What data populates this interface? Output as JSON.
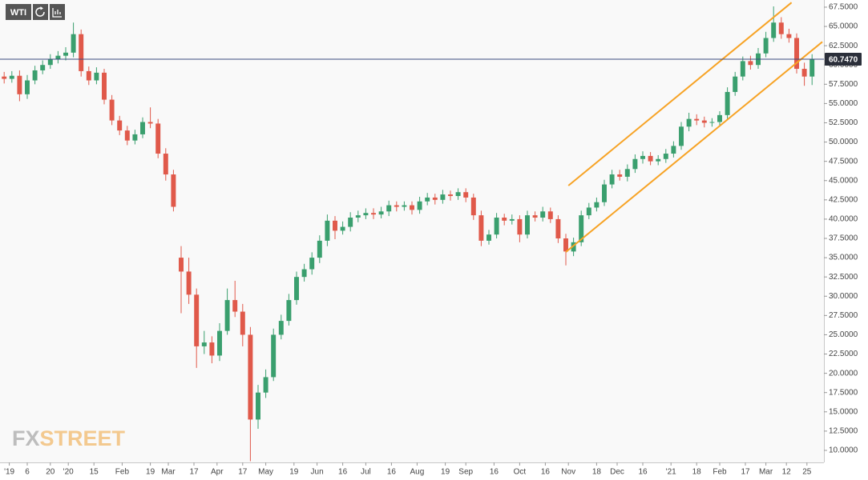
{
  "toolbar": {
    "symbol": "WTI"
  },
  "watermark": {
    "prefix": "FX",
    "suffix": "STREET"
  },
  "chart_data": {
    "type": "candlestick",
    "up_color": "#3a9f6e",
    "down_color": "#e0594a",
    "x": [
      1,
      4,
      7,
      10,
      13,
      16,
      19,
      22,
      25,
      28,
      31,
      34,
      37,
      40,
      43,
      46,
      49,
      52,
      55,
      58,
      61,
      64,
      67,
      70,
      73,
      76,
      79,
      82,
      85,
      88,
      91,
      94,
      97,
      100,
      103,
      106,
      109,
      112,
      115,
      118,
      121,
      124,
      127,
      130,
      133,
      136,
      139,
      142,
      145,
      148,
      151,
      154,
      157,
      160,
      163,
      166,
      169,
      172,
      175,
      178,
      181,
      184,
      187,
      190,
      193,
      196,
      199,
      202,
      205,
      208,
      211,
      214,
      217,
      220,
      223,
      226,
      229,
      232,
      235,
      238,
      241,
      244,
      247,
      250,
      253,
      256,
      259,
      262,
      265,
      268,
      271,
      274,
      277,
      280,
      283,
      286,
      289,
      292,
      295,
      298,
      301,
      304,
      307,
      310,
      313,
      316
    ],
    "open": [
      58.5,
      58.2,
      58.6,
      56.2,
      58.0,
      59.3,
      60.0,
      60.8,
      61.2,
      61.6,
      64.0,
      59.2,
      58.0,
      59.0,
      55.5,
      52.8,
      51.5,
      50.2,
      51.0,
      52.6,
      52.4,
      48.5,
      45.8,
      35.0,
      33.2,
      30.2,
      23.5,
      24.0,
      22.3,
      25.5,
      29.5,
      28.0,
      25.0,
      14.0,
      17.5,
      19.5,
      25.0,
      26.8,
      29.5,
      32.5,
      33.5,
      35.0,
      37.2,
      39.8,
      38.5,
      39.0,
      40.2,
      40.5,
      40.8,
      40.6,
      41.0,
      41.8,
      41.6,
      41.8,
      41.2,
      42.3,
      42.8,
      42.5,
      43.2,
      43.0,
      43.5,
      42.8,
      40.5,
      37.2,
      38.0,
      40.2,
      39.8,
      40.0,
      38.0,
      40.5,
      40.2,
      41.0,
      40.0,
      37.5,
      35.8,
      37.0,
      40.5,
      41.5,
      42.2,
      44.5,
      45.8,
      45.5,
      46.5,
      47.8,
      48.2,
      47.5,
      47.8,
      48.5,
      49.5,
      52.0,
      53.0,
      52.8,
      52.5,
      52.6,
      53.5,
      56.5,
      58.5,
      60.5,
      60.0,
      61.5,
      63.5,
      65.5,
      64.0,
      63.5,
      59.5,
      58.5
    ],
    "high": [
      59.1,
      59.2,
      59.3,
      58.7,
      59.9,
      60.6,
      61.4,
      61.8,
      62.3,
      65.5,
      64.6,
      59.8,
      59.7,
      59.5,
      56.1,
      53.4,
      52.1,
      51.6,
      53.2,
      54.5,
      53.0,
      49.2,
      46.4,
      36.5,
      35.0,
      31.0,
      25.5,
      24.8,
      26.5,
      31.0,
      32.0,
      29.0,
      26.0,
      18.5,
      20.5,
      25.8,
      27.6,
      30.3,
      33.2,
      34.2,
      35.7,
      37.9,
      40.6,
      40.4,
      39.7,
      40.9,
      41.1,
      41.4,
      41.4,
      41.6,
      42.4,
      42.3,
      42.3,
      42.3,
      42.9,
      43.4,
      43.3,
      43.8,
      43.7,
      44.0,
      44.0,
      43.3,
      41.1,
      38.6,
      40.8,
      40.7,
      40.6,
      40.5,
      41.1,
      41.0,
      41.6,
      41.5,
      40.5,
      38.1,
      37.6,
      41.1,
      42.1,
      42.8,
      45.1,
      46.4,
      46.4,
      47.1,
      48.4,
      48.8,
      48.7,
      48.3,
      49.1,
      50.1,
      52.6,
      53.8,
      53.6,
      53.3,
      53.1,
      54.0,
      57.1,
      59.1,
      61.1,
      61.2,
      62.2,
      64.3,
      67.6,
      66.2,
      64.7,
      64.1,
      60.3,
      61.4
    ],
    "low": [
      57.6,
      57.7,
      55.3,
      55.6,
      57.5,
      58.8,
      59.5,
      60.2,
      60.6,
      61.0,
      58.5,
      57.4,
      57.5,
      54.9,
      52.2,
      50.9,
      49.6,
      49.7,
      50.5,
      51.8,
      47.9,
      45.0,
      41.0,
      27.8,
      29.0,
      20.7,
      22.5,
      21.3,
      21.6,
      25.0,
      27.3,
      23.5,
      8.6,
      12.8,
      16.8,
      19.0,
      24.4,
      26.2,
      28.9,
      31.9,
      32.8,
      34.3,
      36.5,
      37.4,
      38.0,
      38.4,
      39.6,
      40.0,
      40.0,
      40.1,
      40.4,
      41.0,
      41.1,
      40.6,
      40.7,
      41.8,
      41.9,
      42.0,
      42.4,
      42.5,
      42.2,
      39.9,
      36.5,
      36.7,
      37.5,
      39.2,
      39.3,
      37.0,
      37.5,
      39.7,
      39.7,
      39.5,
      36.9,
      34.0,
      35.2,
      36.5,
      40.0,
      41.0,
      41.7,
      44.0,
      45.0,
      44.9,
      46.0,
      47.2,
      47.0,
      47.0,
      47.3,
      48.0,
      49.0,
      51.4,
      52.2,
      51.9,
      52.0,
      52.0,
      53.0,
      56.0,
      58.0,
      59.4,
      59.5,
      61.0,
      63.0,
      63.4,
      62.9,
      58.9,
      57.3,
      57.4
    ],
    "close": [
      58.2,
      58.6,
      56.2,
      58.0,
      59.3,
      60.0,
      60.8,
      61.2,
      61.6,
      64.0,
      59.2,
      58.0,
      59.0,
      55.5,
      52.8,
      51.5,
      50.2,
      51.0,
      52.6,
      52.4,
      48.5,
      45.8,
      41.6,
      33.2,
      30.2,
      23.5,
      24.0,
      22.3,
      25.5,
      29.5,
      28.0,
      25.0,
      14.0,
      17.5,
      19.5,
      25.0,
      26.8,
      29.5,
      32.5,
      33.5,
      35.0,
      37.2,
      39.8,
      38.5,
      39.0,
      40.2,
      40.5,
      40.8,
      40.6,
      41.0,
      41.8,
      41.6,
      41.8,
      41.2,
      42.3,
      42.8,
      42.5,
      43.2,
      43.0,
      43.5,
      42.8,
      40.5,
      37.2,
      38.0,
      40.2,
      39.8,
      40.0,
      38.0,
      40.5,
      40.2,
      41.0,
      40.0,
      37.5,
      35.8,
      37.0,
      40.5,
      41.5,
      42.2,
      44.5,
      45.8,
      45.5,
      46.5,
      47.8,
      48.2,
      47.5,
      47.8,
      48.5,
      49.5,
      52.0,
      53.0,
      52.8,
      52.5,
      52.6,
      53.5,
      56.5,
      58.5,
      60.5,
      60.0,
      61.5,
      63.5,
      65.5,
      64.0,
      63.5,
      59.5,
      58.5,
      60.7
    ],
    "xlim": [
      0,
      320
    ],
    "xticks": [
      {
        "value": 3,
        "label": "'19"
      },
      {
        "value": 10,
        "label": "6"
      },
      {
        "value": 19,
        "label": "20"
      },
      {
        "value": 26,
        "label": "'20"
      },
      {
        "value": 36,
        "label": "15"
      },
      {
        "value": 47,
        "label": "Feb"
      },
      {
        "value": 58,
        "label": "19"
      },
      {
        "value": 65,
        "label": "Mar"
      },
      {
        "value": 75,
        "label": "17"
      },
      {
        "value": 84,
        "label": "Apr"
      },
      {
        "value": 94,
        "label": "17"
      },
      {
        "value": 103,
        "label": "May"
      },
      {
        "value": 114,
        "label": "19"
      },
      {
        "value": 123,
        "label": "Jun"
      },
      {
        "value": 133,
        "label": "16"
      },
      {
        "value": 142,
        "label": "Jul"
      },
      {
        "value": 152,
        "label": "16"
      },
      {
        "value": 162,
        "label": "Aug"
      },
      {
        "value": 173,
        "label": "19"
      },
      {
        "value": 181,
        "label": "Sep"
      },
      {
        "value": 192,
        "label": "16"
      },
      {
        "value": 202,
        "label": "Oct"
      },
      {
        "value": 212,
        "label": "16"
      },
      {
        "value": 221,
        "label": "Nov"
      },
      {
        "value": 232,
        "label": "18"
      },
      {
        "value": 240,
        "label": "Dec"
      },
      {
        "value": 250,
        "label": "16"
      },
      {
        "value": 261,
        "label": "'21"
      },
      {
        "value": 271,
        "label": "18"
      },
      {
        "value": 280,
        "label": "Feb"
      },
      {
        "value": 290,
        "label": "17"
      },
      {
        "value": 298,
        "label": "Mar"
      },
      {
        "value": 306,
        "label": "12"
      },
      {
        "value": 314,
        "label": "25"
      }
    ],
    "ylim": [
      8.44,
      68.43
    ],
    "yticks": [
      {
        "value": 10,
        "label": "10.0000"
      },
      {
        "value": 12.5,
        "label": "12.5000"
      },
      {
        "value": 15,
        "label": "15.0000"
      },
      {
        "value": 17.5,
        "label": "17.5000"
      },
      {
        "value": 20,
        "label": "20.0000"
      },
      {
        "value": 22.5,
        "label": "22.5000"
      },
      {
        "value": 25,
        "label": "25.0000"
      },
      {
        "value": 27.5,
        "label": "27.5000"
      },
      {
        "value": 30,
        "label": "30.0000"
      },
      {
        "value": 32.5,
        "label": "32.5000"
      },
      {
        "value": 35,
        "label": "35.0000"
      },
      {
        "value": 37.5,
        "label": "37.5000"
      },
      {
        "value": 40,
        "label": "40.0000"
      },
      {
        "value": 42.5,
        "label": "42.5000"
      },
      {
        "value": 45,
        "label": "45.0000"
      },
      {
        "value": 47.5,
        "label": "47.5000"
      },
      {
        "value": 50,
        "label": "50.0000"
      },
      {
        "value": 52.5,
        "label": "52.5000"
      },
      {
        "value": 55,
        "label": "55.0000"
      },
      {
        "value": 57.5,
        "label": "57.5000"
      },
      {
        "value": 60,
        "label": "60.0000"
      },
      {
        "value": 62.5,
        "label": "62.5000"
      },
      {
        "value": 65,
        "label": "65.0000"
      },
      {
        "value": 67.5,
        "label": "67.5000"
      }
    ],
    "last_price": {
      "value": 60.747,
      "label": "60.7470"
    },
    "last_price_color": "#3b4a7e",
    "channel_color": "#f7a325",
    "channel": [
      {
        "x": [
          221,
          308
        ],
        "y": [
          44.35,
          68.1
        ]
      },
      {
        "x": [
          220,
          320
        ],
        "y": [
          35.74,
          63.0
        ]
      }
    ]
  }
}
